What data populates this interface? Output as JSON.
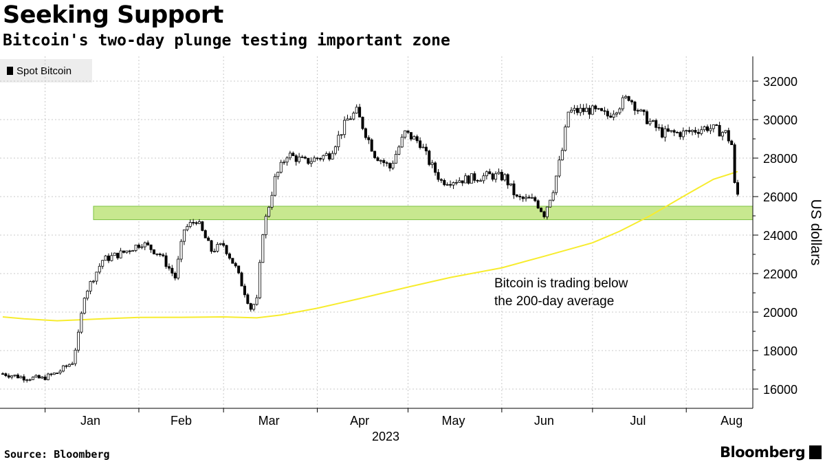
{
  "header": {
    "title": "Seeking Support",
    "subtitle": "Bitcoin's two-day plunge testing important zone"
  },
  "legend": {
    "label": "Spot Bitcoin"
  },
  "footer": {
    "source": "Source: Bloomberg",
    "brand": "Bloomberg"
  },
  "colors": {
    "candle": "#000000",
    "ma200": "#f7ec2d",
    "support_zone": "#c8e88f",
    "support_zone_border": "#7cc242",
    "grid": "#c8c8c8"
  },
  "chart_data": {
    "type": "candlestick",
    "title": "Seeking Support",
    "subtitle": "Bitcoin's two-day plunge testing important zone",
    "ylabel": "US dollars",
    "xlabel": "2023",
    "ylim": [
      15000,
      33000
    ],
    "y_ticks": [
      16000,
      18000,
      20000,
      22000,
      24000,
      26000,
      28000,
      30000,
      32000
    ],
    "x_ticks": [
      "Jan",
      "Feb",
      "Mar",
      "Apr",
      "May",
      "Jun",
      "Jul",
      "Aug"
    ],
    "x_range": [
      "2022-12-18",
      "2023-08-18"
    ],
    "grid": true,
    "legend_position": "top-left",
    "support_zone": {
      "low": 24800,
      "high": 25500
    },
    "annotation": [
      "Bitcoin is trading below",
      "the 200-day average"
    ],
    "series": [
      {
        "name": "Spot Bitcoin",
        "kind": "price",
        "points": [
          [
            "2022-12-18",
            16800
          ],
          [
            "2022-12-25",
            16600
          ],
          [
            "2022-12-31",
            16550
          ],
          [
            "2023-01-05",
            16850
          ],
          [
            "2023-01-10",
            17400
          ],
          [
            "2023-01-12",
            18800
          ],
          [
            "2023-01-14",
            20900
          ],
          [
            "2023-01-20",
            22700
          ],
          [
            "2023-01-27",
            23100
          ],
          [
            "2023-02-02",
            23600
          ],
          [
            "2023-02-08",
            23000
          ],
          [
            "2023-02-13",
            21800
          ],
          [
            "2023-02-16",
            24300
          ],
          [
            "2023-02-20",
            24800
          ],
          [
            "2023-02-25",
            23200
          ],
          [
            "2023-03-01",
            23500
          ],
          [
            "2023-03-05",
            22300
          ],
          [
            "2023-03-10",
            20200
          ],
          [
            "2023-03-12",
            20600
          ],
          [
            "2023-03-14",
            24200
          ],
          [
            "2023-03-18",
            26900
          ],
          [
            "2023-03-22",
            28200
          ],
          [
            "2023-03-28",
            27800
          ],
          [
            "2023-04-05",
            28200
          ],
          [
            "2023-04-11",
            30000
          ],
          [
            "2023-04-14",
            30400
          ],
          [
            "2023-04-20",
            28200
          ],
          [
            "2023-04-25",
            27500
          ],
          [
            "2023-04-30",
            29300
          ],
          [
            "2023-05-05",
            28800
          ],
          [
            "2023-05-08",
            27800
          ],
          [
            "2023-05-12",
            26800
          ],
          [
            "2023-05-20",
            26900
          ],
          [
            "2023-05-28",
            27100
          ],
          [
            "2023-06-02",
            27000
          ],
          [
            "2023-06-06",
            25900
          ],
          [
            "2023-06-12",
            25800
          ],
          [
            "2023-06-15",
            25100
          ],
          [
            "2023-06-18",
            26400
          ],
          [
            "2023-06-21",
            28400
          ],
          [
            "2023-06-23",
            30400
          ],
          [
            "2023-06-30",
            30500
          ],
          [
            "2023-07-06",
            30200
          ],
          [
            "2023-07-13",
            31200
          ],
          [
            "2023-07-17",
            30300
          ],
          [
            "2023-07-24",
            29300
          ],
          [
            "2023-07-31",
            29300
          ],
          [
            "2023-08-08",
            29600
          ],
          [
            "2023-08-14",
            29300
          ],
          [
            "2023-08-16",
            28700
          ],
          [
            "2023-08-17",
            26600
          ],
          [
            "2023-08-18",
            26100
          ]
        ]
      },
      {
        "name": "200-day average",
        "kind": "moving_average",
        "points": [
          [
            "2022-12-18",
            19750
          ],
          [
            "2022-12-25",
            19650
          ],
          [
            "2023-01-05",
            19550
          ],
          [
            "2023-01-20",
            19650
          ],
          [
            "2023-02-01",
            19720
          ],
          [
            "2023-02-15",
            19730
          ],
          [
            "2023-03-01",
            19750
          ],
          [
            "2023-03-12",
            19700
          ],
          [
            "2023-03-20",
            19850
          ],
          [
            "2023-04-01",
            20200
          ],
          [
            "2023-04-15",
            20700
          ],
          [
            "2023-05-01",
            21300
          ],
          [
            "2023-05-15",
            21800
          ],
          [
            "2023-06-01",
            22300
          ],
          [
            "2023-06-15",
            22900
          ],
          [
            "2023-07-01",
            23600
          ],
          [
            "2023-07-10",
            24200
          ],
          [
            "2023-07-20",
            25000
          ],
          [
            "2023-08-01",
            26100
          ],
          [
            "2023-08-10",
            26900
          ],
          [
            "2023-08-18",
            27300
          ]
        ]
      }
    ]
  }
}
